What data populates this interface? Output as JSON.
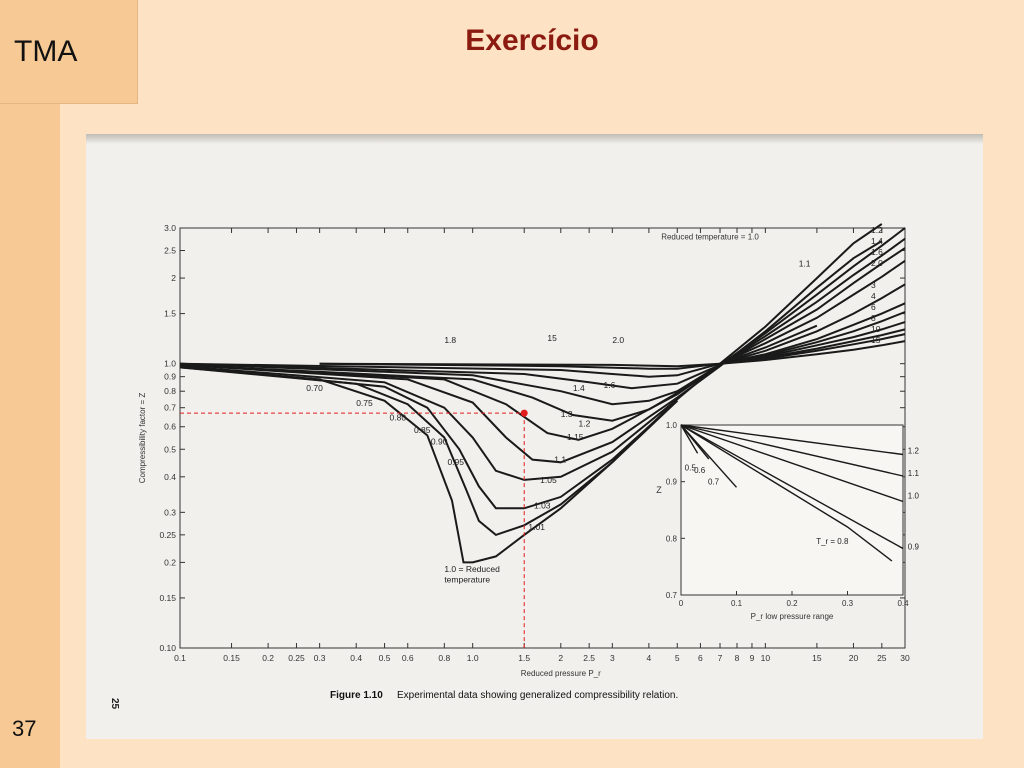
{
  "slide": {
    "brand": "TMA",
    "title": "Exercício",
    "page_number": "37",
    "book_page": "25"
  },
  "colors": {
    "background": "#fde3c4",
    "sidebar": "#f7c994",
    "title": "#8b1a10",
    "marker": "#e11d1d"
  },
  "chart_data": [
    {
      "type": "line",
      "title": "",
      "caption_bold": "Figure 1.10",
      "caption": "Experimental data showing generalized compressibility relation.",
      "xlabel": "Reduced pressure P_r",
      "ylabel": "Compressibility factor = Z",
      "xscale": "log",
      "yscale": "log",
      "xlim": [
        0.1,
        30
      ],
      "ylim": [
        0.1,
        3.0
      ],
      "xticks": [
        "0.1",
        "0.15",
        "0.2",
        "0.25",
        "0.3",
        "0.4",
        "0.5",
        "0.6",
        "0.8",
        "1.0",
        "1.5",
        "2",
        "2.5",
        "3",
        "4",
        "5",
        "6",
        "7",
        "8",
        "9",
        "10",
        "15",
        "20",
        "25",
        "30"
      ],
      "yticks": [
        "0.10",
        "0.15",
        "0.2",
        "0.25",
        "0.3",
        "0.4",
        "0.5",
        "0.6",
        "0.7",
        "0.8",
        "0.9",
        "1.0",
        "1.5",
        "2",
        "2.5",
        "3.0"
      ],
      "legend_title": "Reduced temperature = 1.0",
      "series": [
        {
          "name": "1.0 = Reduced temperature",
          "points": [
            [
              0.1,
              0.97
            ],
            [
              0.3,
              0.88
            ],
            [
              0.5,
              0.74
            ],
            [
              0.7,
              0.56
            ],
            [
              0.85,
              0.33
            ],
            [
              0.93,
              0.2
            ],
            [
              1.0,
              0.2
            ],
            [
              1.2,
              0.21
            ],
            [
              1.5,
              0.25
            ],
            [
              2,
              0.31
            ],
            [
              3,
              0.45
            ],
            [
              5,
              0.75
            ],
            [
              7,
              1.0
            ],
            [
              10,
              1.35
            ],
            [
              15,
              2.0
            ],
            [
              20,
              2.65
            ],
            [
              25,
              3.1
            ]
          ]
        },
        {
          "name": "1.01",
          "points": [
            [
              0.1,
              0.97
            ],
            [
              0.4,
              0.85
            ],
            [
              0.6,
              0.72
            ],
            [
              0.8,
              0.55
            ],
            [
              0.95,
              0.36
            ],
            [
              1.05,
              0.28
            ],
            [
              1.2,
              0.25
            ],
            [
              1.5,
              0.27
            ],
            [
              2,
              0.32
            ],
            [
              3,
              0.45
            ],
            [
              5,
              0.74
            ]
          ]
        },
        {
          "name": "1.03",
          "points": [
            [
              0.1,
              0.98
            ],
            [
              0.5,
              0.83
            ],
            [
              0.7,
              0.7
            ],
            [
              0.9,
              0.5
            ],
            [
              1.05,
              0.37
            ],
            [
              1.2,
              0.31
            ],
            [
              1.5,
              0.31
            ],
            [
              2,
              0.34
            ],
            [
              3,
              0.46
            ],
            [
              5,
              0.74
            ]
          ]
        },
        {
          "name": "1.05",
          "points": [
            [
              0.1,
              0.98
            ],
            [
              0.5,
              0.86
            ],
            [
              0.8,
              0.7
            ],
            [
              1.0,
              0.55
            ],
            [
              1.2,
              0.42
            ],
            [
              1.5,
              0.39
            ],
            [
              2,
              0.4
            ],
            [
              3,
              0.49
            ],
            [
              5,
              0.75
            ]
          ]
        },
        {
          "name": "1.1",
          "points": [
            [
              0.1,
              0.99
            ],
            [
              0.6,
              0.88
            ],
            [
              1.0,
              0.73
            ],
            [
              1.3,
              0.55
            ],
            [
              1.6,
              0.46
            ],
            [
              2,
              0.45
            ],
            [
              3,
              0.53
            ],
            [
              5,
              0.76
            ],
            [
              7,
              0.98
            ],
            [
              10,
              1.3
            ],
            [
              15,
              1.85
            ],
            [
              20,
              2.35
            ],
            [
              25,
              2.7
            ]
          ]
        },
        {
          "name": "1.15",
          "points": [
            [
              0.1,
              0.99
            ],
            [
              0.8,
              0.88
            ],
            [
              1.3,
              0.72
            ],
            [
              1.8,
              0.57
            ],
            [
              2.3,
              0.54
            ],
            [
              3,
              0.59
            ],
            [
              5,
              0.78
            ],
            [
              7,
              0.99
            ]
          ]
        },
        {
          "name": "1.2",
          "points": [
            [
              0.1,
              0.99
            ],
            [
              1.0,
              0.88
            ],
            [
              1.6,
              0.76
            ],
            [
              2.2,
              0.66
            ],
            [
              3,
              0.63
            ],
            [
              4,
              0.69
            ],
            [
              5,
              0.79
            ],
            [
              7,
              0.99
            ],
            [
              10,
              1.28
            ],
            [
              15,
              1.75
            ],
            [
              20,
              2.2
            ],
            [
              25,
              2.6
            ],
            [
              30,
              3.0
            ]
          ]
        },
        {
          "name": "1.3",
          "points": [
            [
              0.1,
              1.0
            ],
            [
              1.0,
              0.91
            ],
            [
              2,
              0.8
            ],
            [
              3,
              0.72
            ],
            [
              4,
              0.74
            ],
            [
              5,
              0.8
            ],
            [
              7,
              0.99
            ],
            [
              10,
              1.25
            ],
            [
              15,
              1.65
            ],
            [
              20,
              2.05
            ],
            [
              25,
              2.4
            ],
            [
              30,
              2.75
            ]
          ]
        },
        {
          "name": "1.4",
          "points": [
            [
              0.1,
              1.0
            ],
            [
              1.5,
              0.92
            ],
            [
              2.5,
              0.86
            ],
            [
              3.5,
              0.82
            ],
            [
              5,
              0.85
            ],
            [
              7,
              0.99
            ],
            [
              10,
              1.22
            ],
            [
              15,
              1.55
            ],
            [
              20,
              1.92
            ],
            [
              25,
              2.25
            ],
            [
              30,
              2.55
            ]
          ]
        },
        {
          "name": "1.6",
          "points": [
            [
              0.1,
              1.0
            ],
            [
              2,
              0.95
            ],
            [
              3,
              0.92
            ],
            [
              4,
              0.9
            ],
            [
              5,
              0.91
            ],
            [
              7,
              1.0
            ],
            [
              10,
              1.18
            ],
            [
              15,
              1.45
            ],
            [
              20,
              1.75
            ],
            [
              25,
              2.02
            ],
            [
              30,
              2.3
            ]
          ]
        },
        {
          "name": "1.8",
          "points": [
            [
              0.3,
              1.0
            ],
            [
              2,
              0.98
            ],
            [
              4,
              0.96
            ],
            [
              5,
              0.96
            ],
            [
              7,
              1.0
            ],
            [
              10,
              1.14
            ],
            [
              15,
              1.36
            ]
          ]
        },
        {
          "name": "2.0",
          "points": [
            [
              0.3,
              1.0
            ],
            [
              3,
              0.99
            ],
            [
              5,
              0.98
            ],
            [
              7,
              1.0
            ],
            [
              10,
              1.11
            ],
            [
              15,
              1.3
            ],
            [
              20,
              1.5
            ],
            [
              25,
              1.7
            ],
            [
              30,
              1.9
            ]
          ]
        },
        {
          "name": "3",
          "points": [
            [
              7,
              1.0
            ],
            [
              10,
              1.08
            ],
            [
              15,
              1.22
            ],
            [
              20,
              1.37
            ],
            [
              25,
              1.5
            ],
            [
              30,
              1.63
            ]
          ]
        },
        {
          "name": "4",
          "points": [
            [
              7,
              1.0
            ],
            [
              10,
              1.07
            ],
            [
              15,
              1.19
            ],
            [
              20,
              1.3
            ],
            [
              25,
              1.41
            ],
            [
              30,
              1.52
            ]
          ]
        },
        {
          "name": "6",
          "points": [
            [
              7,
              1.0
            ],
            [
              10,
              1.06
            ],
            [
              15,
              1.16
            ],
            [
              20,
              1.24
            ],
            [
              25,
              1.32
            ],
            [
              30,
              1.4
            ]
          ]
        },
        {
          "name": "8",
          "points": [
            [
              7,
              1.0
            ],
            [
              10,
              1.05
            ],
            [
              15,
              1.13
            ],
            [
              20,
              1.2
            ],
            [
              25,
              1.26
            ],
            [
              30,
              1.32
            ]
          ]
        },
        {
          "name": "10",
          "points": [
            [
              7,
              1.0
            ],
            [
              10,
              1.04
            ],
            [
              15,
              1.11
            ],
            [
              20,
              1.17
            ],
            [
              25,
              1.22
            ],
            [
              30,
              1.27
            ]
          ]
        },
        {
          "name": "15",
          "points": [
            [
              7,
              1.0
            ],
            [
              10,
              1.03
            ],
            [
              15,
              1.08
            ],
            [
              20,
              1.12
            ],
            [
              25,
              1.16
            ],
            [
              30,
              1.2
            ]
          ]
        }
      ],
      "curve_labels": [
        {
          "text": "0.70",
          "x": 0.27,
          "y": 0.8
        },
        {
          "text": "0.75",
          "x": 0.4,
          "y": 0.71
        },
        {
          "text": "0.80",
          "x": 0.52,
          "y": 0.63
        },
        {
          "text": "0.85",
          "x": 0.63,
          "y": 0.57
        },
        {
          "text": "0.90",
          "x": 0.72,
          "y": 0.52
        },
        {
          "text": "0.95",
          "x": 0.82,
          "y": 0.44
        },
        {
          "text": "1.01",
          "x": 1.55,
          "y": 0.26
        },
        {
          "text": "1.03",
          "x": 1.62,
          "y": 0.31
        },
        {
          "text": "1.05",
          "x": 1.7,
          "y": 0.38
        },
        {
          "text": "1.1",
          "x": 1.9,
          "y": 0.45
        },
        {
          "text": "1.15",
          "x": 2.1,
          "y": 0.54
        },
        {
          "text": "1.2",
          "x": 2.3,
          "y": 0.6
        },
        {
          "text": "1.3",
          "x": 2.0,
          "y": 0.65
        },
        {
          "text": "1.4",
          "x": 2.2,
          "y": 0.8
        },
        {
          "text": "1.6",
          "x": 2.8,
          "y": 0.82
        },
        {
          "text": "1.8",
          "x": 0.8,
          "y": 1.18
        },
        {
          "text": "15",
          "x": 1.8,
          "y": 1.2
        },
        {
          "text": "2.0",
          "x": 3.0,
          "y": 1.18
        },
        {
          "text": "1.1",
          "x": 13.0,
          "y": 2.2
        },
        {
          "text": "1.0 = Reduced",
          "x": 0.8,
          "y": 0.185
        },
        {
          "text": "temperature",
          "x": 0.8,
          "y": 0.17
        }
      ],
      "right_labels": [
        "1.2",
        "1.4",
        "1.6",
        "2.0",
        "3",
        "4",
        "6",
        "8",
        "10",
        "15"
      ],
      "annotation": {
        "x": 1.5,
        "y": 0.67,
        "note": "dashed guide lines to point"
      }
    },
    {
      "type": "line",
      "title": "",
      "xlabel": "P_r low pressure range",
      "ylabel": "Z",
      "xlim": [
        0,
        0.4
      ],
      "ylim": [
        0.7,
        1.0
      ],
      "xticks": [
        "0",
        "0.1",
        "0.2",
        "0.3",
        "0.4"
      ],
      "yticks": [
        "0.7",
        "0.8",
        "0.9",
        "1.0"
      ],
      "series": [
        {
          "name": "1.2",
          "points": [
            [
              0,
              1.0
            ],
            [
              0.4,
              0.948
            ]
          ]
        },
        {
          "name": "1.1",
          "points": [
            [
              0,
              1.0
            ],
            [
              0.4,
              0.91
            ]
          ]
        },
        {
          "name": "1.0",
          "points": [
            [
              0,
              1.0
            ],
            [
              0.4,
              0.865
            ]
          ]
        },
        {
          "name": "T_r = 0.8",
          "points": [
            [
              0,
              1.0
            ],
            [
              0.2,
              0.88
            ],
            [
              0.3,
              0.82
            ],
            [
              0.38,
              0.76
            ]
          ]
        },
        {
          "name": "0.9",
          "points": [
            [
              0,
              1.0
            ],
            [
              0.4,
              0.782
            ]
          ]
        },
        {
          "name": "0.7",
          "points": [
            [
              0,
              1.0
            ],
            [
              0.1,
              0.89
            ]
          ]
        },
        {
          "name": "0.6",
          "points": [
            [
              0,
              1.0
            ],
            [
              0.05,
              0.94
            ]
          ]
        },
        {
          "name": "0.5",
          "points": [
            [
              0,
              1.0
            ],
            [
              0.03,
              0.95
            ]
          ]
        }
      ],
      "curve_labels": [
        "0.5",
        "0.6",
        "0.7",
        "T_r = 0.8",
        "0.9",
        "1.0",
        "1.1",
        "1.2"
      ]
    }
  ]
}
